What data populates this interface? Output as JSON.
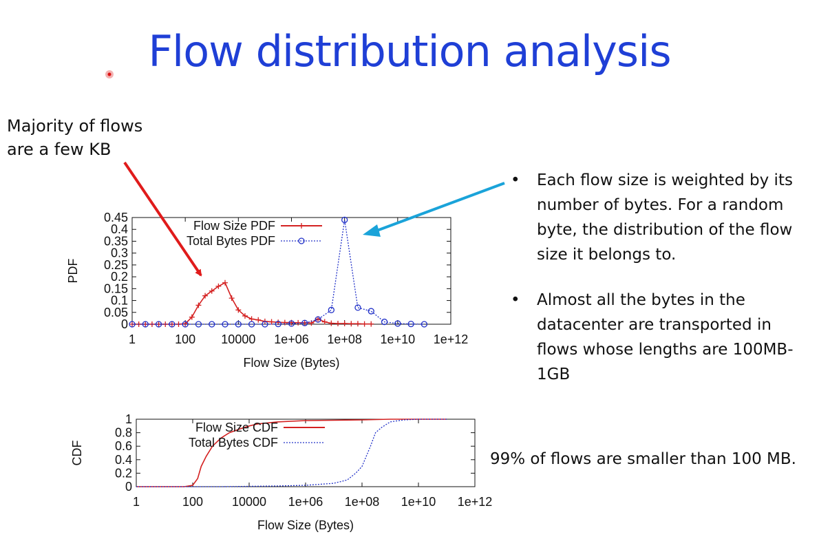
{
  "slide": {
    "title": "Flow distribution analysis",
    "note_line1": "Majority of flows",
    "note_line2": "are a few KB",
    "bullets": [
      "Each flow size is weighted by its number of bytes. For a random byte, the distribution of the flow size it belongs to.",
      "Almost all the bytes in the datacenter are transported in flows whose lengths are 100MB-1GB"
    ],
    "bullet_symbol": "•",
    "footnote": "99% of flows are smaller than 100 MB.",
    "colors": {
      "title": "#1f3fd6",
      "red_arrow": "#e01b1b",
      "blue_arrow": "#1aa3d9"
    }
  },
  "chart_data": [
    {
      "type": "line",
      "xscale": "log10",
      "xlabel": "Flow Size (Bytes)",
      "ylabel": "PDF",
      "xlim": [
        1,
        1000000000000.0
      ],
      "ylim": [
        0,
        0.45
      ],
      "xticks": [
        "1",
        "100",
        "10000",
        "1e+06",
        "1e+08",
        "1e+10",
        "1e+12"
      ],
      "yticks": [
        "0",
        "0.05",
        "0.1",
        "0.15",
        "0.2",
        "0.25",
        "0.3",
        "0.35",
        "0.4",
        "0.45"
      ],
      "legend_position": "top-left",
      "series": [
        {
          "name": "Flow Size PDF",
          "color": "#d42020",
          "marker": "plus",
          "linestyle": "solid",
          "x": [
            1,
            1.78,
            3.16,
            5.62,
            10,
            17.8,
            31.6,
            56.2,
            100,
            178,
            316,
            562,
            1000,
            1780,
            3160,
            5620,
            10000,
            17800,
            31600,
            56200,
            100000,
            178000,
            316000,
            562000,
            1000000,
            1780000,
            3160000,
            5620000,
            10000000,
            17800000,
            31600000,
            56200000,
            100000000,
            178000000,
            316000000,
            562000000,
            1000000000
          ],
          "y": [
            0,
            0,
            0,
            0,
            0,
            0,
            0,
            0,
            0.002,
            0.03,
            0.08,
            0.12,
            0.14,
            0.16,
            0.175,
            0.11,
            0.06,
            0.035,
            0.022,
            0.018,
            0.012,
            0.01,
            0.008,
            0.007,
            0.007,
            0.006,
            0.006,
            0.005,
            0.022,
            0.01,
            0.004,
            0.003,
            0.003,
            0.002,
            0.002,
            0.001,
            0.001
          ]
        },
        {
          "name": "Total Bytes PDF",
          "color": "#2030c8",
          "marker": "circle",
          "linestyle": "dotted",
          "x": [
            1,
            3.16,
            10,
            31.6,
            100,
            316,
            1000,
            3160,
            10000,
            31600,
            100000,
            316000,
            1000000,
            3160000,
            10000000,
            31600000,
            100000000,
            316000000,
            1000000000,
            3160000000,
            10000000000,
            31600000000,
            100000000000
          ],
          "y": [
            0,
            0,
            0,
            0,
            0,
            0,
            0,
            0,
            0,
            0,
            0,
            0.001,
            0.003,
            0.005,
            0.02,
            0.06,
            0.44,
            0.07,
            0.055,
            0.01,
            0.003,
            0.001,
            0
          ]
        }
      ]
    },
    {
      "type": "line",
      "xscale": "log10",
      "xlabel": "Flow Size (Bytes)",
      "ylabel": "CDF",
      "xlim": [
        1,
        1000000000000.0
      ],
      "ylim": [
        0,
        1
      ],
      "xticks": [
        "1",
        "100",
        "10000",
        "1e+06",
        "1e+08",
        "1e+10",
        "1e+12"
      ],
      "yticks": [
        "0",
        "0.2",
        "0.4",
        "0.6",
        "0.8",
        "1"
      ],
      "legend_position": "top-left",
      "series": [
        {
          "name": "Flow Size CDF",
          "color": "#d42020",
          "linestyle": "solid",
          "x": [
            1,
            50,
            100,
            150,
            200,
            300,
            500,
            1000,
            2000,
            5000,
            10000,
            20000,
            100000,
            1000000,
            10000000,
            100000000,
            1000000000,
            10000000000,
            100000000000
          ],
          "y": [
            0,
            0,
            0.02,
            0.12,
            0.3,
            0.45,
            0.6,
            0.72,
            0.8,
            0.86,
            0.9,
            0.93,
            0.96,
            0.98,
            0.985,
            0.99,
            1,
            1,
            1
          ]
        },
        {
          "name": "Total Bytes CDF",
          "color": "#2030c8",
          "linestyle": "dotted",
          "x": [
            1,
            1000,
            10000,
            100000,
            1000000,
            10000000,
            30000000,
            60000000,
            100000000,
            200000000,
            300000000,
            500000000,
            1000000000,
            3000000000,
            10000000000,
            100000000000
          ],
          "y": [
            0,
            0,
            0.005,
            0.01,
            0.02,
            0.05,
            0.1,
            0.2,
            0.3,
            0.6,
            0.8,
            0.88,
            0.96,
            0.99,
            1,
            1
          ]
        }
      ]
    }
  ]
}
